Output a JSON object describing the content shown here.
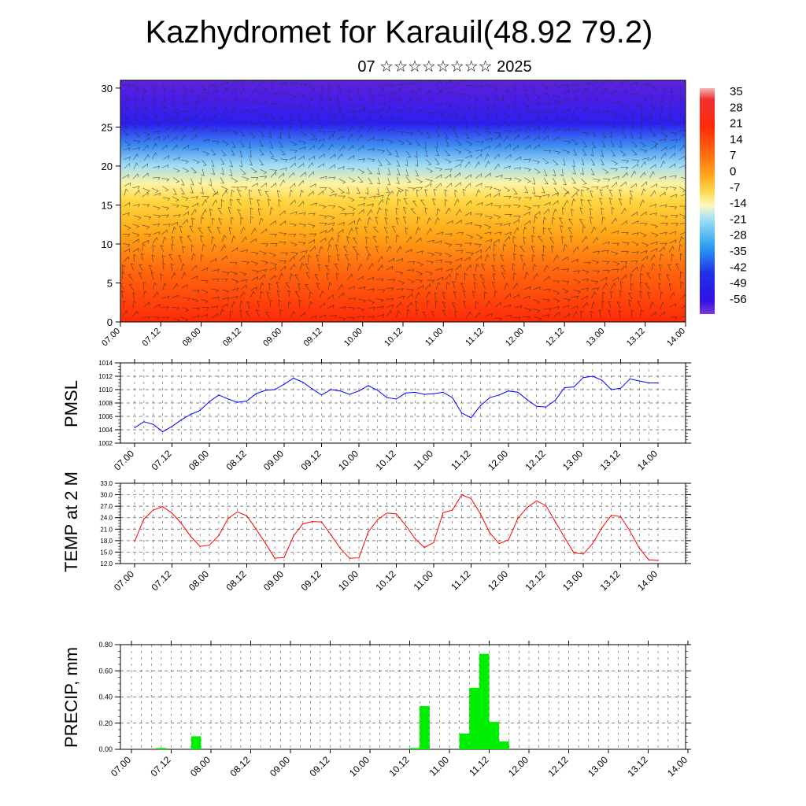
{
  "title": "Kazhydromet for Karauil(48.92 79.2)",
  "subtitle": "07 ☆☆☆☆☆☆☆☆ 2025",
  "time_labels": [
    "07.00",
    "07.12",
    "08.00",
    "08.12",
    "09.00",
    "09.12",
    "10.00",
    "10.12",
    "11.00",
    "11.12",
    "12.00",
    "12.12",
    "13.00",
    "13.12",
    "14.00"
  ],
  "colors": {
    "pmsl_line": "#0000ff",
    "temp_line": "#ff0000",
    "precip_bar": "#00ee00"
  },
  "chart_data": [
    {
      "type": "heatmap",
      "name": "temperature_cross_section",
      "x_ticks": [
        "07.00",
        "07.12",
        "08.00",
        "08.12",
        "09.00",
        "09.12",
        "10.00",
        "10.12",
        "11.00",
        "11.12",
        "12.00",
        "12.12",
        "13.00",
        "13.12",
        "14.00"
      ],
      "ylim": [
        0,
        31
      ],
      "y_ticks": [
        0,
        5,
        10,
        15,
        20,
        25,
        30
      ],
      "colorbar_labels": [
        "35",
        "28",
        "21",
        "14",
        "7",
        "0",
        "-7",
        "-14",
        "-21",
        "-28",
        "-35",
        "-42",
        "-49",
        "-56"
      ],
      "overlay": "wind barbs"
    },
    {
      "type": "line",
      "ylabel": "PMSL",
      "ylim": [
        1002,
        1014
      ],
      "y_ticks": [
        "1002",
        "1004",
        "1006",
        "1008",
        "1010",
        "1012",
        "1014"
      ],
      "x_ticks": [
        "07.00",
        "07.12",
        "08.00",
        "08.12",
        "09.00",
        "09.12",
        "10.00",
        "10.12",
        "11.00",
        "11.12",
        "12.00",
        "12.12",
        "13.00",
        "13.12",
        "14.00"
      ],
      "values": [
        1004.3,
        1005.2,
        1004.8,
        1003.7,
        1004.5,
        1005.5,
        1006.3,
        1006.9,
        1008.2,
        1009.2,
        1008.6,
        1008.1,
        1008.3,
        1009.4,
        1009.9,
        1010.0,
        1010.8,
        1011.7,
        1011.1,
        1010.1,
        1009.2,
        1010.0,
        1009.8,
        1009.3,
        1009.8,
        1010.6,
        1009.9,
        1008.8,
        1008.6,
        1009.5,
        1009.6,
        1009.3,
        1009.4,
        1009.6,
        1008.8,
        1006.5,
        1005.8,
        1007.6,
        1008.8,
        1009.2,
        1009.8,
        1009.6,
        1008.5,
        1007.5,
        1007.4,
        1008.4,
        1010.3,
        1010.4,
        1011.8,
        1012.0,
        1011.4,
        1010.0,
        1010.2,
        1011.6,
        1011.3,
        1011.0,
        1011.0
      ],
      "grid": true
    },
    {
      "type": "line",
      "ylabel": "TEMP at 2 M",
      "ylim": [
        12.0,
        33.0
      ],
      "y_ticks": [
        "12.0",
        "15.0",
        "18.0",
        "21.0",
        "24.0",
        "27.0",
        "30.0",
        "33.0"
      ],
      "x_ticks": [
        "07.00",
        "07.12",
        "08.00",
        "08.12",
        "09.00",
        "09.12",
        "10.00",
        "10.12",
        "11.00",
        "11.12",
        "12.00",
        "12.12",
        "13.00",
        "13.12",
        "14.00"
      ],
      "values": [
        17.8,
        23.7,
        26.0,
        26.9,
        25.2,
        22.5,
        19.1,
        16.5,
        16.8,
        19.3,
        23.8,
        25.5,
        24.5,
        21.0,
        17.3,
        13.4,
        13.6,
        19.2,
        22.4,
        23.0,
        22.9,
        19.5,
        16.0,
        13.4,
        13.5,
        20.3,
        23.5,
        25.2,
        25.0,
        22.0,
        18.5,
        16.2,
        17.5,
        25.3,
        26.0,
        30.0,
        29.0,
        25.0,
        20.0,
        17.2,
        18.2,
        23.8,
        26.7,
        28.4,
        27.2,
        23.0,
        18.8,
        14.8,
        14.5,
        17.2,
        21.4,
        24.6,
        24.3,
        20.5,
        16.0,
        13.0,
        12.8
      ],
      "grid": true
    },
    {
      "type": "bar",
      "ylabel": "PRECIP, mm",
      "ylim": [
        0,
        0.8
      ],
      "y_ticks": [
        "0.00",
        "0.20",
        "0.40",
        "0.60",
        "0.80"
      ],
      "x_ticks": [
        "07.00",
        "07.12",
        "08.00",
        "08.12",
        "09.00",
        "09.12",
        "10.00",
        "10.12",
        "11.00",
        "11.12",
        "12.00",
        "12.12",
        "13.00",
        "13.12",
        "14.00"
      ],
      "values": [
        0,
        0,
        0,
        0,
        0,
        0.01,
        0,
        0,
        0,
        0,
        0,
        0,
        0.1,
        0,
        0,
        0,
        0,
        0,
        0,
        0,
        0,
        0,
        0,
        0,
        0,
        0,
        0,
        0,
        0,
        0,
        0,
        0,
        0,
        0,
        0,
        0,
        0,
        0,
        0,
        0,
        0,
        0,
        0,
        0,
        0,
        0,
        0,
        0,
        0,
        0,
        0,
        0,
        0,
        0,
        0,
        0,
        0.01,
        0,
        0.33,
        0,
        0,
        0,
        0,
        0,
        0,
        0,
        0.12,
        0,
        0.47,
        0,
        0.73,
        0,
        0.21,
        0,
        0.06,
        0,
        0,
        0,
        0,
        0,
        0,
        0,
        0,
        0,
        0,
        0,
        0,
        0,
        0,
        0,
        0,
        0,
        0,
        0,
        0,
        0,
        0,
        0,
        0,
        0,
        0,
        0,
        0,
        0,
        0,
        0,
        0,
        0,
        0,
        0,
        0,
        0
      ],
      "grid": true
    }
  ]
}
